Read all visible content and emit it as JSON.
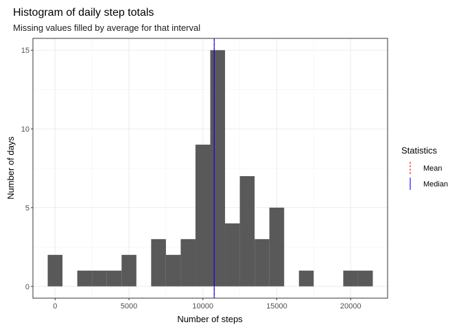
{
  "chart_data": {
    "type": "bar",
    "title": "Histogram of daily step totals",
    "subtitle": "Missing values filled by average for that interval",
    "xlabel": "Number of steps",
    "ylabel": "Number of days",
    "bin_width": 1000,
    "bins": [
      {
        "center": 0,
        "count": 2
      },
      {
        "center": 2000,
        "count": 1
      },
      {
        "center": 3000,
        "count": 1
      },
      {
        "center": 4000,
        "count": 1
      },
      {
        "center": 5000,
        "count": 2
      },
      {
        "center": 7000,
        "count": 3
      },
      {
        "center": 8000,
        "count": 2
      },
      {
        "center": 9000,
        "count": 3
      },
      {
        "center": 10000,
        "count": 9
      },
      {
        "center": 11000,
        "count": 15
      },
      {
        "center": 12000,
        "count": 4
      },
      {
        "center": 13000,
        "count": 7
      },
      {
        "center": 14000,
        "count": 3
      },
      {
        "center": 15000,
        "count": 5
      },
      {
        "center": 17000,
        "count": 1
      },
      {
        "center": 20000,
        "count": 1
      },
      {
        "center": 21000,
        "count": 1
      }
    ],
    "xlim": [
      -1500,
      22500
    ],
    "ylim": [
      -0.75,
      15.75
    ],
    "x_ticks": [
      0,
      5000,
      10000,
      15000,
      20000
    ],
    "x_tick_labels": [
      "0",
      "5000",
      "10000",
      "15000",
      "20000"
    ],
    "y_ticks": [
      0,
      5,
      10,
      15
    ],
    "y_tick_labels": [
      "0",
      "5",
      "10",
      "15"
    ],
    "bar_color": "#595959",
    "grid": true,
    "vlines": [
      {
        "name": "Mean",
        "value": 10766,
        "color": "#ff0000",
        "style": "dashed"
      },
      {
        "name": "Median",
        "value": 10766,
        "color": "#0000ff",
        "style": "solid"
      }
    ],
    "legend": {
      "title": "Statistics",
      "position": "right",
      "items": [
        {
          "label": "Mean",
          "color": "#ff0000",
          "style": "dashed"
        },
        {
          "label": "Median",
          "color": "#0000ff",
          "style": "solid"
        }
      ]
    }
  }
}
